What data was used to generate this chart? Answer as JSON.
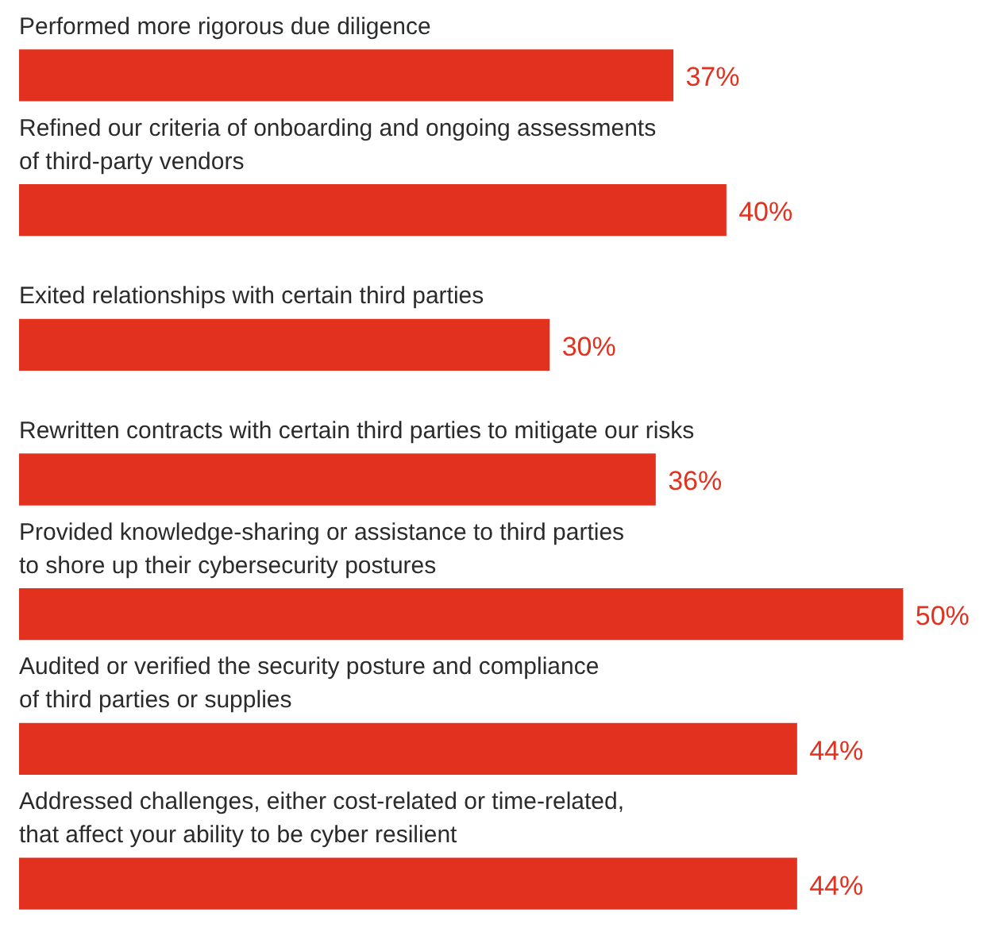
{
  "chart_data": {
    "type": "bar",
    "orientation": "horizontal",
    "categories": [
      "Performed more rigorous due diligence",
      "Refined our criteria of onboarding and ongoing assessments\nof third-party vendors",
      "Exited relationships with certain third parties",
      "Rewritten contracts with certain third parties to mitigate our risks",
      "Provided knowledge-sharing or assistance to third parties\nto shore up their cybersecurity postures",
      "Audited or verified the security posture and compliance\nof third parties or supplies",
      "Addressed challenges, either cost-related or time-related,\nthat affect your ability to be cyber resilient"
    ],
    "values": [
      37,
      40,
      30,
      36,
      50,
      44,
      44
    ],
    "color": "#e3311f",
    "value_labels": [
      "37%",
      "40%",
      "30%",
      "36%",
      "50%",
      "44%",
      "44%"
    ]
  }
}
